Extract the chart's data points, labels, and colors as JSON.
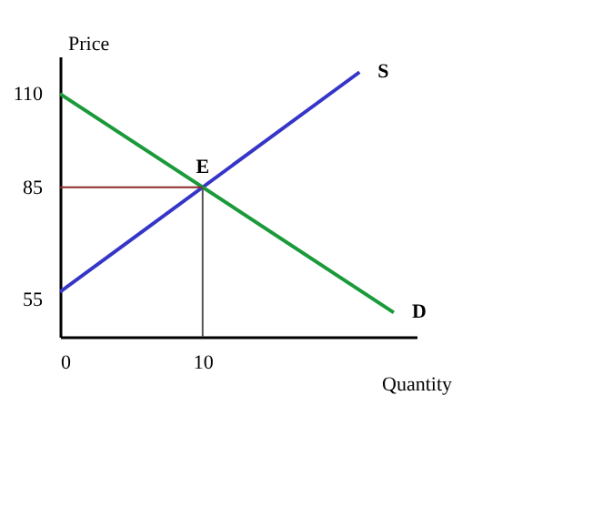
{
  "chart_data": {
    "type": "line",
    "xlabel": "Quantity",
    "ylabel": "Price",
    "xlim": [
      0,
      25
    ],
    "ylim": [
      45,
      120
    ],
    "xticks": [
      0,
      10
    ],
    "yticks": [
      55,
      85,
      110
    ],
    "marker": "none",
    "line_style": "solid",
    "series": [
      {
        "name": "S",
        "color": "#3535c8",
        "x": [
          0,
          21
        ],
        "values": [
          57,
          115.8
        ]
      },
      {
        "name": "D",
        "color": "#1a9a3a",
        "x": [
          0,
          23.4
        ],
        "values": [
          110,
          51.5
        ]
      },
      {
        "color": "#8b2a2a",
        "x": [
          0,
          10
        ],
        "values": [
          85,
          85
        ]
      },
      {
        "color": "#555555",
        "x": [
          10,
          10
        ],
        "values": [
          45,
          85
        ]
      }
    ],
    "annotations": [
      {
        "text": "E",
        "x": 10,
        "y": 85
      }
    ]
  }
}
